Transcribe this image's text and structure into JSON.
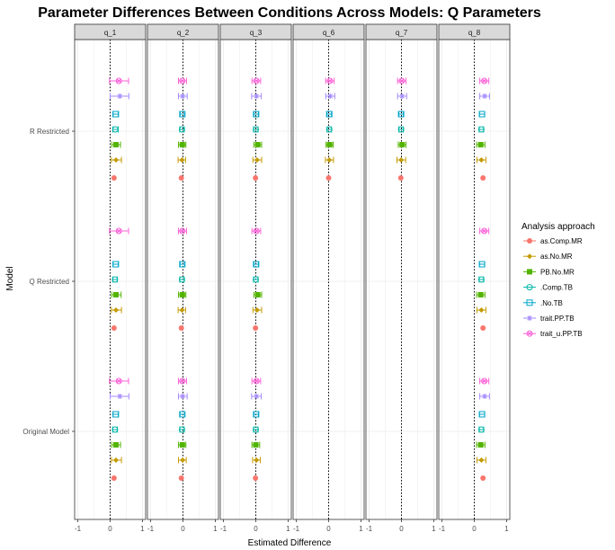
{
  "chart_data": {
    "type": "scatter",
    "title": "Parameter Differences Between Conditions Across Models: Q Parameters",
    "xlabel": "Estimated Difference",
    "ylabel": "Model",
    "xlim": [
      -1.1,
      1.1
    ],
    "x_ticks": [
      -1,
      0,
      1
    ],
    "x_tick_labels": [
      "-1",
      "0",
      "1"
    ],
    "reference_line_x": 0,
    "grid": true,
    "legend_position": "right",
    "legend_title": "Analysis approach",
    "panels": [
      "q_1",
      "q_2",
      "q_3",
      "q_6",
      "q_7",
      "q_8"
    ],
    "models": [
      "Original Model",
      "Q Restricted",
      "R Restricted"
    ],
    "series": [
      {
        "name": "as.Comp.MR",
        "color": "#F8766D",
        "shape": "circle"
      },
      {
        "name": "as.No.MR",
        "color": "#C49A00",
        "shape": "diamond"
      },
      {
        "name": "PB.No.MR",
        "color": "#53B400",
        "shape": "square-filled"
      },
      {
        "name": ".Comp.TB",
        "color": "#00B6A8",
        "shape": "circle-open"
      },
      {
        "name": ".No.TB",
        "color": "#00A6C8",
        "shape": "square-open"
      },
      {
        "name": "trait.PP.TB",
        "color": "#A58AFF",
        "shape": "star"
      },
      {
        "name": "trait_u.PP.TB",
        "color": "#FB61D7",
        "shape": "circle-cross"
      }
    ],
    "points": [
      {
        "panel": "q_1",
        "model": "R Restricted",
        "series": "as.Comp.MR",
        "x": 0.12,
        "xmin": 0.12,
        "xmax": 0.12
      },
      {
        "panel": "q_1",
        "model": "R Restricted",
        "series": "as.No.MR",
        "x": 0.18,
        "xmin": 0.04,
        "xmax": 0.35
      },
      {
        "panel": "q_1",
        "model": "R Restricted",
        "series": "PB.No.MR",
        "x": 0.18,
        "xmin": 0.05,
        "xmax": 0.32
      },
      {
        "panel": "q_1",
        "model": "R Restricted",
        "series": ".Comp.TB",
        "x": 0.16,
        "xmin": 0.08,
        "xmax": 0.25
      },
      {
        "panel": "q_1",
        "model": "R Restricted",
        "series": ".No.TB",
        "x": 0.17,
        "xmin": 0.09,
        "xmax": 0.26
      },
      {
        "panel": "q_1",
        "model": "R Restricted",
        "series": "trait.PP.TB",
        "x": 0.3,
        "xmin": 0.0,
        "xmax": 0.58
      },
      {
        "panel": "q_1",
        "model": "R Restricted",
        "series": "trait_u.PP.TB",
        "x": 0.27,
        "xmin": -0.02,
        "xmax": 0.57
      },
      {
        "panel": "q_1",
        "model": "Q Restricted",
        "series": "as.Comp.MR",
        "x": 0.12,
        "xmin": 0.12,
        "xmax": 0.12
      },
      {
        "panel": "q_1",
        "model": "Q Restricted",
        "series": "as.No.MR",
        "x": 0.18,
        "xmin": 0.04,
        "xmax": 0.35
      },
      {
        "panel": "q_1",
        "model": "Q Restricted",
        "series": "PB.No.MR",
        "x": 0.18,
        "xmin": 0.05,
        "xmax": 0.34
      },
      {
        "panel": "q_1",
        "model": "Q Restricted",
        "series": ".Comp.TB",
        "x": 0.15,
        "xmin": 0.08,
        "xmax": 0.22
      },
      {
        "panel": "q_1",
        "model": "Q Restricted",
        "series": ".No.TB",
        "x": 0.17,
        "xmin": 0.09,
        "xmax": 0.26
      },
      {
        "panel": "q_1",
        "model": "Q Restricted",
        "series": "trait_u.PP.TB",
        "x": 0.27,
        "xmin": -0.02,
        "xmax": 0.57
      },
      {
        "panel": "q_1",
        "model": "Original Model",
        "series": "as.Comp.MR",
        "x": 0.12,
        "xmin": 0.12,
        "xmax": 0.12
      },
      {
        "panel": "q_1",
        "model": "Original Model",
        "series": "as.No.MR",
        "x": 0.18,
        "xmin": 0.04,
        "xmax": 0.35
      },
      {
        "panel": "q_1",
        "model": "Original Model",
        "series": "PB.No.MR",
        "x": 0.18,
        "xmin": 0.05,
        "xmax": 0.32
      },
      {
        "panel": "q_1",
        "model": "Original Model",
        "series": ".Comp.TB",
        "x": 0.15,
        "xmin": 0.08,
        "xmax": 0.22
      },
      {
        "panel": "q_1",
        "model": "Original Model",
        "series": ".No.TB",
        "x": 0.17,
        "xmin": 0.09,
        "xmax": 0.26
      },
      {
        "panel": "q_1",
        "model": "Original Model",
        "series": "trait.PP.TB",
        "x": 0.3,
        "xmin": 0.0,
        "xmax": 0.58
      },
      {
        "panel": "q_1",
        "model": "Original Model",
        "series": "trait_u.PP.TB",
        "x": 0.27,
        "xmin": -0.02,
        "xmax": 0.57
      },
      {
        "panel": "q_2",
        "model": "R Restricted",
        "series": "as.Comp.MR",
        "x": -0.05,
        "xmin": -0.05,
        "xmax": -0.05
      },
      {
        "panel": "q_2",
        "model": "R Restricted",
        "series": "as.No.MR",
        "x": -0.03,
        "xmin": -0.15,
        "xmax": 0.08
      },
      {
        "panel": "q_2",
        "model": "R Restricted",
        "series": "PB.No.MR",
        "x": -0.02,
        "xmin": -0.14,
        "xmax": 0.09
      },
      {
        "panel": "q_2",
        "model": "R Restricted",
        "series": ".Comp.TB",
        "x": -0.03,
        "xmin": -0.1,
        "xmax": 0.04
      },
      {
        "panel": "q_2",
        "model": "R Restricted",
        "series": ".No.TB",
        "x": -0.02,
        "xmin": -0.09,
        "xmax": 0.05
      },
      {
        "panel": "q_2",
        "model": "R Restricted",
        "series": "trait.PP.TB",
        "x": -0.01,
        "xmin": -0.14,
        "xmax": 0.13
      },
      {
        "panel": "q_2",
        "model": "R Restricted",
        "series": "trait_u.PP.TB",
        "x": -0.02,
        "xmin": -0.14,
        "xmax": 0.11
      },
      {
        "panel": "q_2",
        "model": "Q Restricted",
        "series": "as.Comp.MR",
        "x": -0.05,
        "xmin": -0.05,
        "xmax": -0.05
      },
      {
        "panel": "q_2",
        "model": "Q Restricted",
        "series": "as.No.MR",
        "x": -0.03,
        "xmin": -0.15,
        "xmax": 0.08
      },
      {
        "panel": "q_2",
        "model": "Q Restricted",
        "series": "PB.No.MR",
        "x": -0.02,
        "xmin": -0.14,
        "xmax": 0.09
      },
      {
        "panel": "q_2",
        "model": "Q Restricted",
        "series": ".Comp.TB",
        "x": -0.03,
        "xmin": -0.1,
        "xmax": 0.04
      },
      {
        "panel": "q_2",
        "model": "Q Restricted",
        "series": ".No.TB",
        "x": -0.02,
        "xmin": -0.09,
        "xmax": 0.05
      },
      {
        "panel": "q_2",
        "model": "Q Restricted",
        "series": "trait_u.PP.TB",
        "x": -0.02,
        "xmin": -0.14,
        "xmax": 0.11
      },
      {
        "panel": "q_2",
        "model": "Original Model",
        "series": "as.Comp.MR",
        "x": -0.05,
        "xmin": -0.05,
        "xmax": -0.05
      },
      {
        "panel": "q_2",
        "model": "Original Model",
        "series": "as.No.MR",
        "x": -0.01,
        "xmin": -0.14,
        "xmax": 0.1
      },
      {
        "panel": "q_2",
        "model": "Original Model",
        "series": "PB.No.MR",
        "x": -0.02,
        "xmin": -0.14,
        "xmax": 0.09
      },
      {
        "panel": "q_2",
        "model": "Original Model",
        "series": ".Comp.TB",
        "x": -0.03,
        "xmin": -0.1,
        "xmax": 0.04
      },
      {
        "panel": "q_2",
        "model": "Original Model",
        "series": ".No.TB",
        "x": -0.02,
        "xmin": -0.09,
        "xmax": 0.05
      },
      {
        "panel": "q_2",
        "model": "Original Model",
        "series": "trait.PP.TB",
        "x": -0.01,
        "xmin": -0.14,
        "xmax": 0.13
      },
      {
        "panel": "q_2",
        "model": "Original Model",
        "series": "trait_u.PP.TB",
        "x": -0.02,
        "xmin": -0.14,
        "xmax": 0.11
      },
      {
        "panel": "q_3",
        "model": "R Restricted",
        "series": "as.Comp.MR",
        "x": -0.01,
        "xmin": -0.01,
        "xmax": -0.01
      },
      {
        "panel": "q_3",
        "model": "R Restricted",
        "series": "as.No.MR",
        "x": 0.04,
        "xmin": -0.09,
        "xmax": 0.18
      },
      {
        "panel": "q_3",
        "model": "R Restricted",
        "series": "PB.No.MR",
        "x": 0.06,
        "xmin": -0.06,
        "xmax": 0.18
      },
      {
        "panel": "q_3",
        "model": "R Restricted",
        "series": ".Comp.TB",
        "x": 0.0,
        "xmin": -0.07,
        "xmax": 0.07
      },
      {
        "panel": "q_3",
        "model": "R Restricted",
        "series": ".No.TB",
        "x": 0.01,
        "xmin": -0.06,
        "xmax": 0.08
      },
      {
        "panel": "q_3",
        "model": "R Restricted",
        "series": "trait.PP.TB",
        "x": 0.02,
        "xmin": -0.13,
        "xmax": 0.17
      },
      {
        "panel": "q_3",
        "model": "R Restricted",
        "series": "trait_u.PP.TB",
        "x": 0.02,
        "xmin": -0.12,
        "xmax": 0.15
      },
      {
        "panel": "q_3",
        "model": "Q Restricted",
        "series": "as.Comp.MR",
        "x": -0.01,
        "xmin": -0.01,
        "xmax": -0.01
      },
      {
        "panel": "q_3",
        "model": "Q Restricted",
        "series": "as.No.MR",
        "x": 0.04,
        "xmin": -0.09,
        "xmax": 0.18
      },
      {
        "panel": "q_3",
        "model": "Q Restricted",
        "series": "PB.No.MR",
        "x": 0.06,
        "xmin": -0.06,
        "xmax": 0.18
      },
      {
        "panel": "q_3",
        "model": "Q Restricted",
        "series": ".Comp.TB",
        "x": 0.0,
        "xmin": -0.07,
        "xmax": 0.07
      },
      {
        "panel": "q_3",
        "model": "Q Restricted",
        "series": ".No.TB",
        "x": 0.01,
        "xmin": -0.06,
        "xmax": 0.08
      },
      {
        "panel": "q_3",
        "model": "Q Restricted",
        "series": "trait_u.PP.TB",
        "x": 0.02,
        "xmin": -0.12,
        "xmax": 0.15
      },
      {
        "panel": "q_3",
        "model": "Original Model",
        "series": "as.Comp.MR",
        "x": -0.01,
        "xmin": -0.01,
        "xmax": -0.01
      },
      {
        "panel": "q_3",
        "model": "Original Model",
        "series": "as.No.MR",
        "x": 0.02,
        "xmin": -0.1,
        "xmax": 0.14
      },
      {
        "panel": "q_3",
        "model": "Original Model",
        "series": "PB.No.MR",
        "x": 0.0,
        "xmin": -0.12,
        "xmax": 0.12
      },
      {
        "panel": "q_3",
        "model": "Original Model",
        "series": ".Comp.TB",
        "x": 0.0,
        "xmin": -0.07,
        "xmax": 0.07
      },
      {
        "panel": "q_3",
        "model": "Original Model",
        "series": ".No.TB",
        "x": 0.01,
        "xmin": -0.06,
        "xmax": 0.08
      },
      {
        "panel": "q_3",
        "model": "Original Model",
        "series": "trait.PP.TB",
        "x": 0.02,
        "xmin": -0.13,
        "xmax": 0.17
      },
      {
        "panel": "q_3",
        "model": "Original Model",
        "series": "trait_u.PP.TB",
        "x": 0.02,
        "xmin": -0.12,
        "xmax": 0.15
      },
      {
        "panel": "q_6",
        "model": "R Restricted",
        "series": "as.Comp.MR",
        "x": 0.0,
        "xmin": 0.0,
        "xmax": 0.0
      },
      {
        "panel": "q_6",
        "model": "R Restricted",
        "series": "as.No.MR",
        "x": 0.02,
        "xmin": -0.1,
        "xmax": 0.15
      },
      {
        "panel": "q_6",
        "model": "R Restricted",
        "series": "PB.No.MR",
        "x": 0.03,
        "xmin": -0.08,
        "xmax": 0.14
      },
      {
        "panel": "q_6",
        "model": "R Restricted",
        "series": ".Comp.TB",
        "x": 0.02,
        "xmin": -0.05,
        "xmax": 0.09
      },
      {
        "panel": "q_6",
        "model": "R Restricted",
        "series": ".No.TB",
        "x": 0.02,
        "xmin": -0.05,
        "xmax": 0.09
      },
      {
        "panel": "q_6",
        "model": "R Restricted",
        "series": "trait.PP.TB",
        "x": 0.05,
        "xmin": -0.09,
        "xmax": 0.19
      },
      {
        "panel": "q_6",
        "model": "R Restricted",
        "series": "trait_u.PP.TB",
        "x": 0.04,
        "xmin": -0.09,
        "xmax": 0.17
      },
      {
        "panel": "q_7",
        "model": "R Restricted",
        "series": "as.Comp.MR",
        "x": -0.02,
        "xmin": -0.02,
        "xmax": -0.02
      },
      {
        "panel": "q_7",
        "model": "R Restricted",
        "series": "as.No.MR",
        "x": -0.01,
        "xmin": -0.14,
        "xmax": 0.13
      },
      {
        "panel": "q_7",
        "model": "R Restricted",
        "series": "PB.No.MR",
        "x": 0.02,
        "xmin": -0.1,
        "xmax": 0.14
      },
      {
        "panel": "q_7",
        "model": "R Restricted",
        "series": ".Comp.TB",
        "x": -0.01,
        "xmin": -0.08,
        "xmax": 0.06
      },
      {
        "panel": "q_7",
        "model": "R Restricted",
        "series": ".No.TB",
        "x": -0.01,
        "xmin": -0.08,
        "xmax": 0.06
      },
      {
        "panel": "q_7",
        "model": "R Restricted",
        "series": "trait.PP.TB",
        "x": 0.02,
        "xmin": -0.12,
        "xmax": 0.16
      },
      {
        "panel": "q_7",
        "model": "R Restricted",
        "series": "trait_u.PP.TB",
        "x": 0.01,
        "xmin": -0.12,
        "xmax": 0.14
      },
      {
        "panel": "q_8",
        "model": "R Restricted",
        "series": "as.Comp.MR",
        "x": 0.27,
        "xmin": 0.27,
        "xmax": 0.27
      },
      {
        "panel": "q_8",
        "model": "R Restricted",
        "series": "as.No.MR",
        "x": 0.22,
        "xmin": 0.08,
        "xmax": 0.36
      },
      {
        "panel": "q_8",
        "model": "R Restricted",
        "series": "PB.No.MR",
        "x": 0.2,
        "xmin": 0.07,
        "xmax": 0.33
      },
      {
        "panel": "q_8",
        "model": "R Restricted",
        "series": ".Comp.TB",
        "x": 0.22,
        "xmin": 0.15,
        "xmax": 0.29
      },
      {
        "panel": "q_8",
        "model": "R Restricted",
        "series": ".No.TB",
        "x": 0.24,
        "xmin": 0.16,
        "xmax": 0.32
      },
      {
        "panel": "q_8",
        "model": "R Restricted",
        "series": "trait.PP.TB",
        "x": 0.32,
        "xmin": 0.17,
        "xmax": 0.47
      },
      {
        "panel": "q_8",
        "model": "R Restricted",
        "series": "trait_u.PP.TB",
        "x": 0.31,
        "xmin": 0.17,
        "xmax": 0.45
      },
      {
        "panel": "q_8",
        "model": "Q Restricted",
        "series": "as.Comp.MR",
        "x": 0.27,
        "xmin": 0.27,
        "xmax": 0.27
      },
      {
        "panel": "q_8",
        "model": "Q Restricted",
        "series": "as.No.MR",
        "x": 0.22,
        "xmin": 0.08,
        "xmax": 0.36
      },
      {
        "panel": "q_8",
        "model": "Q Restricted",
        "series": "PB.No.MR",
        "x": 0.2,
        "xmin": 0.07,
        "xmax": 0.33
      },
      {
        "panel": "q_8",
        "model": "Q Restricted",
        "series": ".Comp.TB",
        "x": 0.22,
        "xmin": 0.15,
        "xmax": 0.29
      },
      {
        "panel": "q_8",
        "model": "Q Restricted",
        "series": ".No.TB",
        "x": 0.24,
        "xmin": 0.16,
        "xmax": 0.32
      },
      {
        "panel": "q_8",
        "model": "Q Restricted",
        "series": "trait_u.PP.TB",
        "x": 0.31,
        "xmin": 0.17,
        "xmax": 0.45
      },
      {
        "panel": "q_8",
        "model": "Original Model",
        "series": "as.Comp.MR",
        "x": 0.27,
        "xmin": 0.27,
        "xmax": 0.27
      },
      {
        "panel": "q_8",
        "model": "Original Model",
        "series": "as.No.MR",
        "x": 0.22,
        "xmin": 0.08,
        "xmax": 0.36
      },
      {
        "panel": "q_8",
        "model": "Original Model",
        "series": "PB.No.MR",
        "x": 0.2,
        "xmin": 0.07,
        "xmax": 0.33
      },
      {
        "panel": "q_8",
        "model": "Original Model",
        "series": ".Comp.TB",
        "x": 0.22,
        "xmin": 0.15,
        "xmax": 0.29
      },
      {
        "panel": "q_8",
        "model": "Original Model",
        "series": ".No.TB",
        "x": 0.24,
        "xmin": 0.16,
        "xmax": 0.32
      },
      {
        "panel": "q_8",
        "model": "Original Model",
        "series": "trait.PP.TB",
        "x": 0.32,
        "xmin": 0.17,
        "xmax": 0.47
      },
      {
        "panel": "q_8",
        "model": "Original Model",
        "series": "trait_u.PP.TB",
        "x": 0.31,
        "xmin": 0.17,
        "xmax": 0.45
      }
    ]
  }
}
